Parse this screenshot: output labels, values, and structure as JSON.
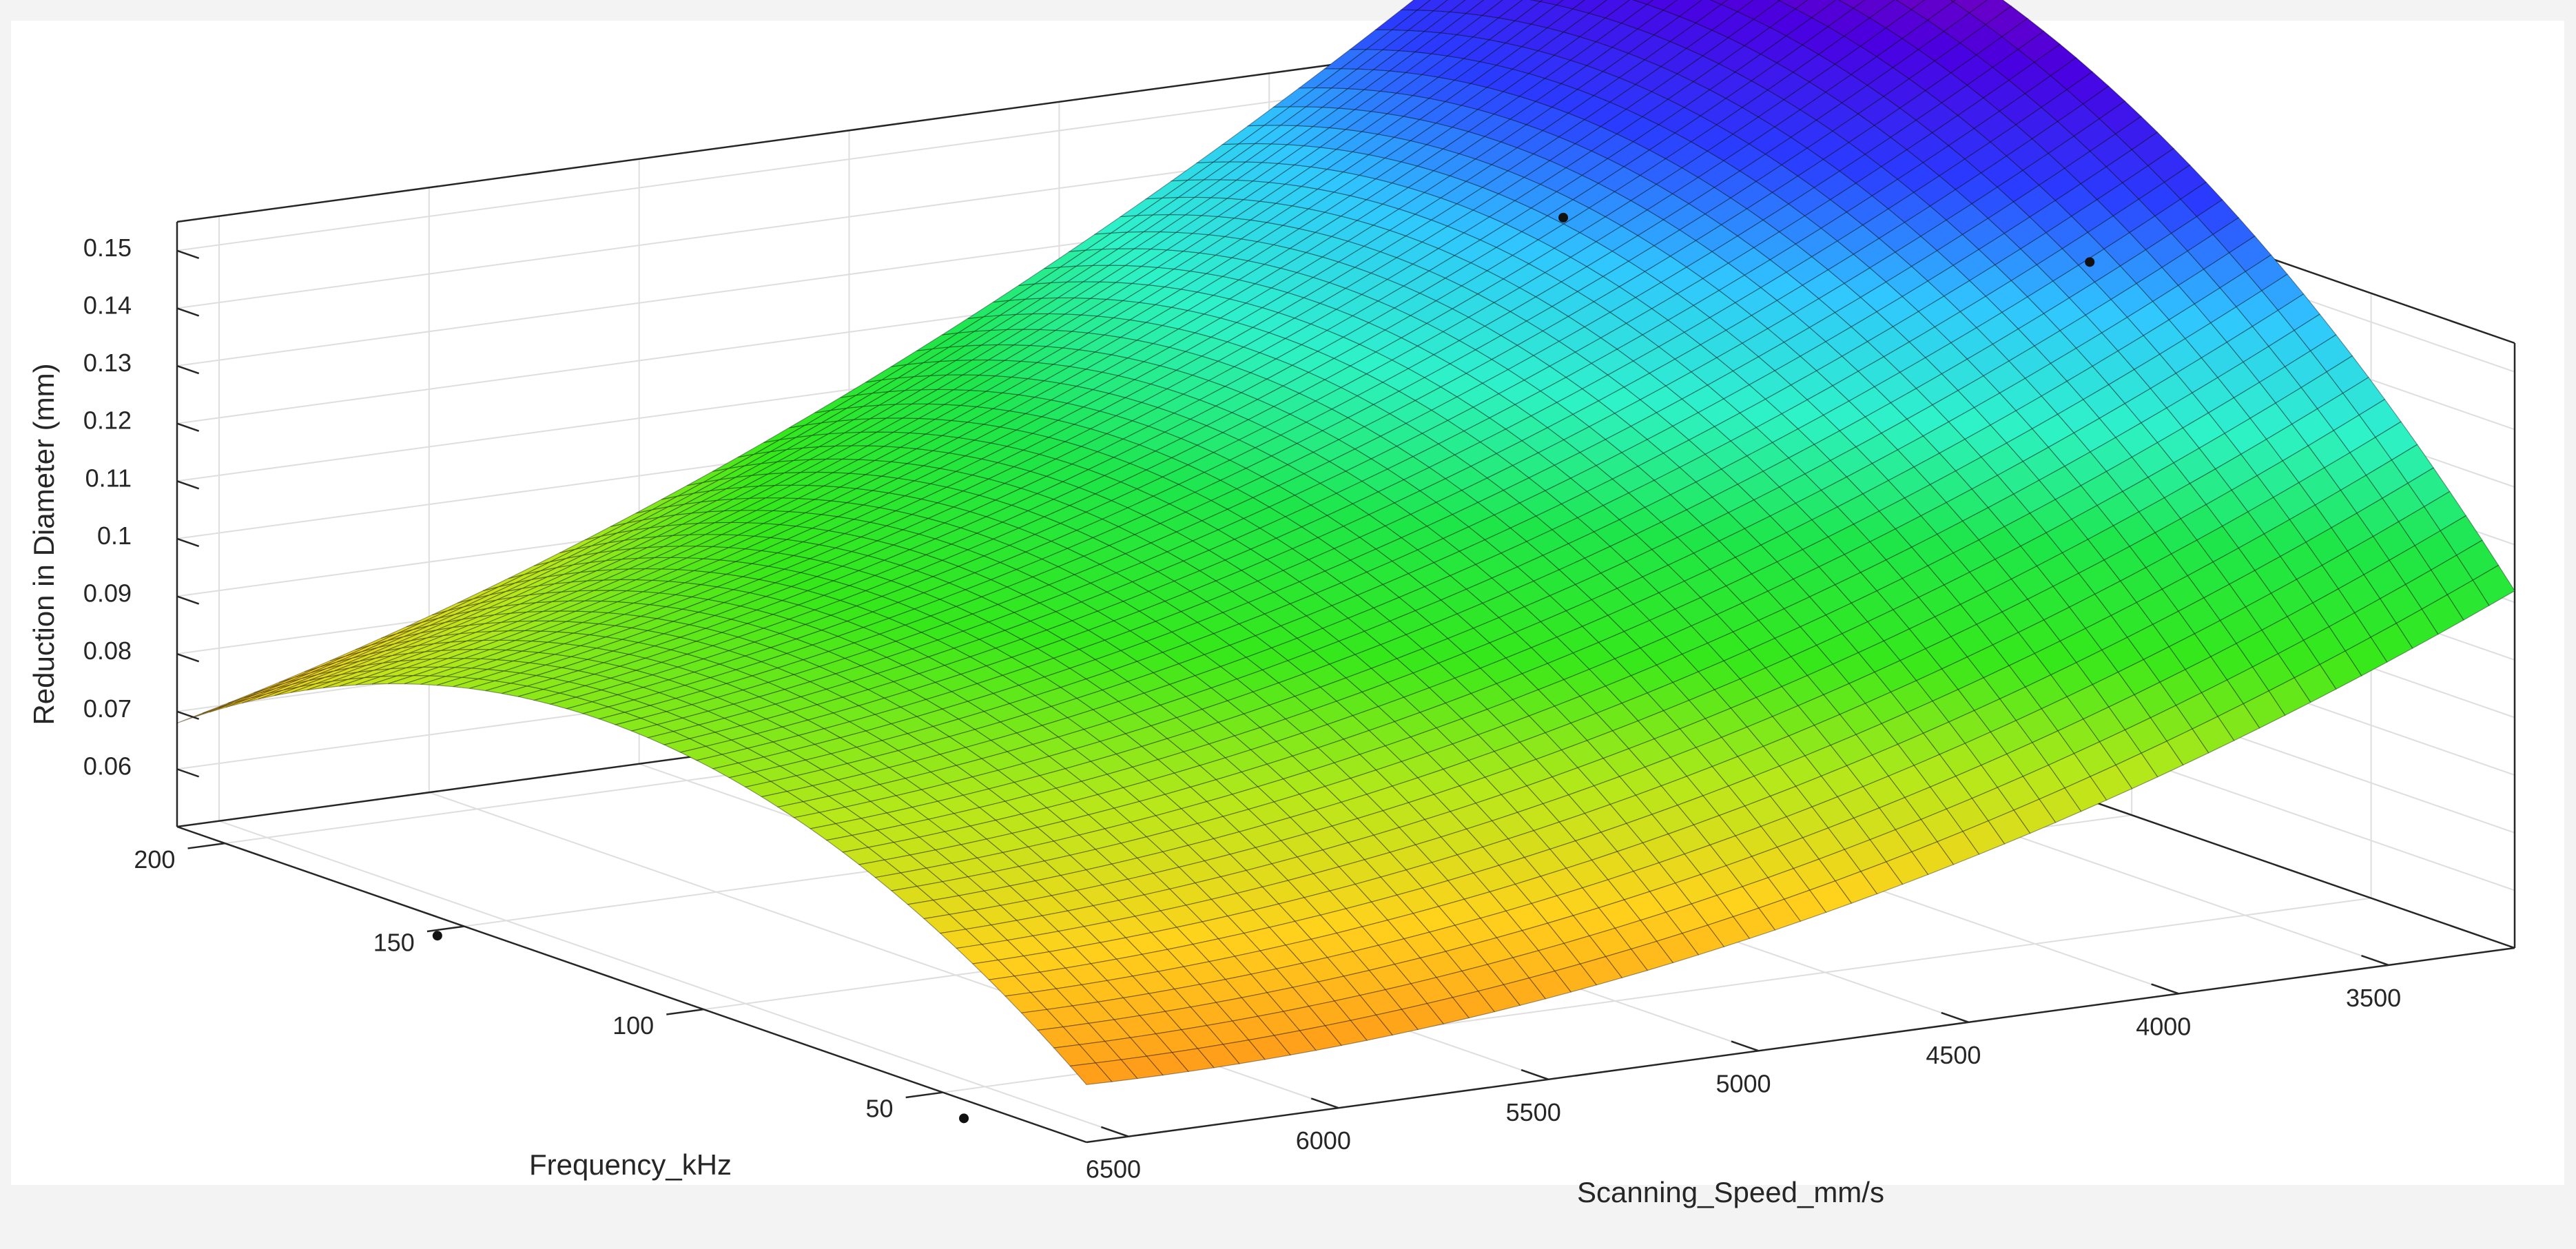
{
  "chart_data": {
    "type": "surface",
    "title": "",
    "xlabel": "Scanning_Speed_mm/s",
    "ylabel": "Frequency_kHz",
    "zlabel": "Reduction in Diameter (mm)",
    "x_ticks": [
      "3500",
      "4000",
      "4500",
      "5000",
      "5500",
      "6000",
      "6500"
    ],
    "y_ticks": [
      "50",
      "100",
      "150",
      "200"
    ],
    "z_ticks": [
      "0.06",
      "0.07",
      "0.08",
      "0.09",
      "0.1",
      "0.11",
      "0.12",
      "0.13",
      "0.14",
      "0.15"
    ],
    "xlim": [
      3200,
      6600
    ],
    "ylim": [
      20,
      210
    ],
    "zlim": [
      0.05,
      0.155
    ],
    "grid": true,
    "surface_grid": {
      "x_range": [
        3200,
        6600
      ],
      "y_range": [
        20,
        210
      ],
      "n": 56
    },
    "fitted_surface_model": {
      "form": "z = c0 + cx*u + cxx*u^2 + cy*v + cyy*v^2 + cxy*u*v, u=(x-3200)/3400, v=(y-20)/190",
      "c0": 0.112,
      "cx": -0.11,
      "cxx": 0.058,
      "cy": 0.195,
      "cyy": -0.12,
      "cxy": -0.067
    },
    "surface_clip": "surface not drawn where z < 0.045",
    "colormap": [
      "#8b00a8",
      "#4a00e0",
      "#2a3cff",
      "#30c6ff",
      "#2ef2c8",
      "#1ee64a",
      "#35e81a",
      "#b5e81a",
      "#ffd21c",
      "#ff9a1a"
    ],
    "scatter_points": [
      {
        "x": 3300,
        "y": 210,
        "z": 0.123
      },
      {
        "x": 3300,
        "y": 100,
        "z": 0.147
      },
      {
        "x": 6550,
        "y": 160,
        "z": 0.045
      },
      {
        "x": 6550,
        "y": 50,
        "z": 0.045
      }
    ]
  }
}
